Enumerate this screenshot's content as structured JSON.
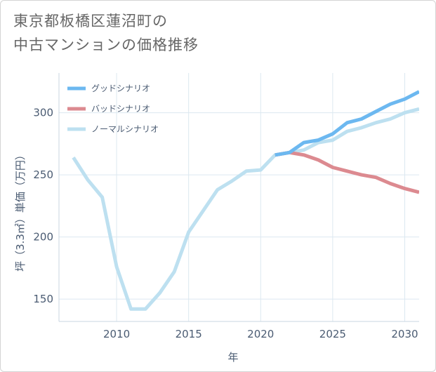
{
  "title_lines": [
    "東京都板橋区蓮沼町の",
    "中古マンションの価格推移"
  ],
  "chart_data": {
    "type": "line",
    "xlabel": "年",
    "ylabel": "坪（3.3㎡）単価（万円）",
    "xlim": [
      2006,
      2031
    ],
    "ylim": [
      132,
      332
    ],
    "xticks": [
      2010,
      2015,
      2020,
      2025,
      2030
    ],
    "yticks": [
      150,
      200,
      250,
      300
    ],
    "grid": true,
    "legend_position": "top-left",
    "series": [
      {
        "name": "グッドシナリオ",
        "color": "#6cb8f0",
        "x": [
          2021,
          2022,
          2023,
          2024,
          2025,
          2026,
          2027,
          2028,
          2029,
          2030,
          2031
        ],
        "y": [
          266,
          268,
          276,
          278,
          283,
          292,
          295,
          301,
          307,
          311,
          317
        ]
      },
      {
        "name": "バッドシナリオ",
        "color": "#dc8a90",
        "x": [
          2021,
          2022,
          2023,
          2024,
          2025,
          2026,
          2027,
          2028,
          2029,
          2030,
          2031
        ],
        "y": [
          266,
          268,
          266,
          262,
          256,
          253,
          250,
          248,
          243,
          239,
          236
        ]
      },
      {
        "name": "ノーマルシナリオ",
        "color": "#bde0f0",
        "x": [
          2007,
          2008,
          2009,
          2010,
          2011,
          2012,
          2013,
          2014,
          2015,
          2016,
          2017,
          2018,
          2019,
          2020,
          2021,
          2022,
          2023,
          2024,
          2025,
          2026,
          2027,
          2028,
          2029,
          2030,
          2031
        ],
        "y": [
          264,
          246,
          232,
          176,
          142,
          142,
          155,
          172,
          204,
          221,
          238,
          245,
          253,
          254,
          266,
          268,
          270,
          276,
          278,
          285,
          288,
          292,
          295,
          300,
          303
        ]
      }
    ]
  }
}
